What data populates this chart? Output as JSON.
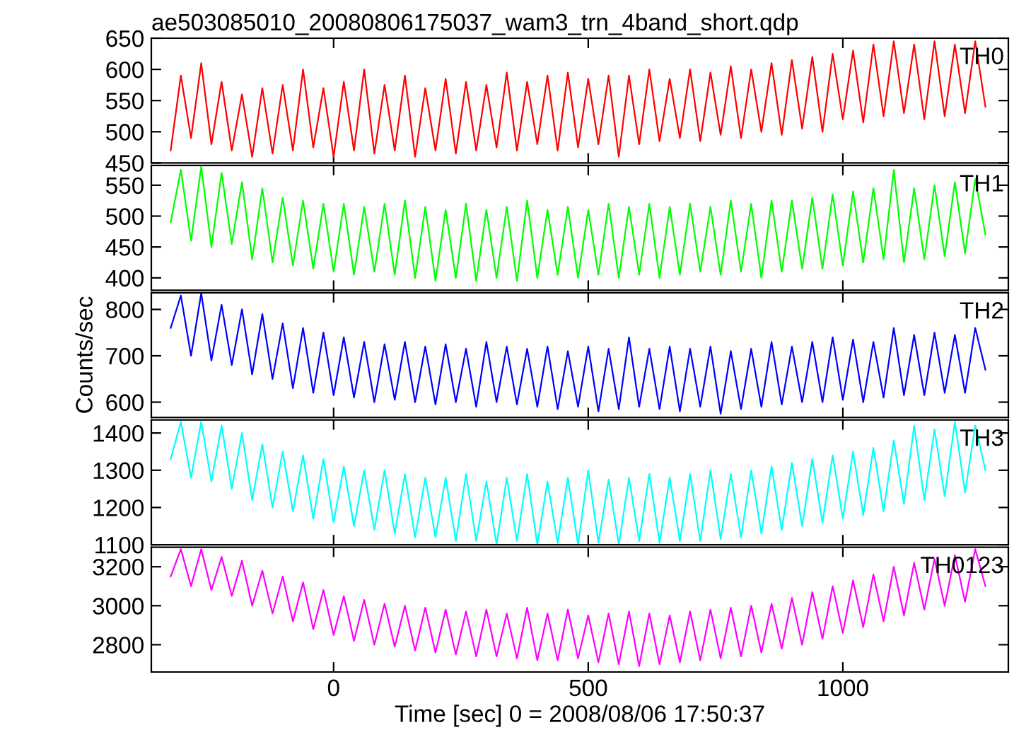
{
  "chart_data": [
    {
      "type": "line",
      "title": "ae503085010_20080806175037_wam3_trn_4band_short.qdp",
      "tick_labels": "y",
      "xlim": [
        -358,
        1325
      ],
      "xticks": [
        0,
        500,
        1000
      ],
      "ylim": [
        450,
        650
      ],
      "yticks": [
        450,
        500,
        550,
        600,
        650
      ],
      "grid": false,
      "legend": false,
      "x": [
        -320,
        -300,
        -280,
        -260,
        -240,
        -220,
        -200,
        -180,
        -160,
        -140,
        -120,
        -100,
        -80,
        -60,
        -40,
        -20,
        0,
        20,
        40,
        60,
        80,
        100,
        120,
        140,
        160,
        180,
        200,
        220,
        240,
        260,
        280,
        300,
        320,
        340,
        360,
        380,
        400,
        420,
        440,
        460,
        480,
        500,
        520,
        540,
        560,
        580,
        600,
        620,
        640,
        660,
        680,
        700,
        720,
        740,
        760,
        780,
        800,
        820,
        840,
        860,
        880,
        900,
        920,
        940,
        960,
        980,
        1000,
        1020,
        1040,
        1060,
        1080,
        1100,
        1120,
        1140,
        1160,
        1180,
        1200,
        1220,
        1240,
        1260,
        1280
      ],
      "series": [
        {
          "name": "TH0",
          "color": "#ff0000",
          "values": [
            470,
            590,
            490,
            610,
            480,
            580,
            470,
            560,
            460,
            570,
            465,
            575,
            470,
            600,
            475,
            570,
            460,
            580,
            470,
            600,
            465,
            575,
            470,
            590,
            460,
            570,
            470,
            585,
            465,
            580,
            470,
            575,
            475,
            595,
            470,
            580,
            480,
            590,
            470,
            595,
            475,
            585,
            480,
            590,
            460,
            590,
            480,
            600,
            485,
            585,
            490,
            600,
            485,
            595,
            495,
            605,
            490,
            600,
            500,
            610,
            495,
            615,
            505,
            620,
            500,
            625,
            520,
            630,
            515,
            640,
            525,
            645,
            530,
            640,
            520,
            645,
            525,
            640,
            530,
            645,
            540
          ]
        }
      ]
    },
    {
      "type": "line",
      "tick_labels": "y",
      "xlim": [
        -358,
        1325
      ],
      "xticks": [
        0,
        500,
        1000
      ],
      "ylim": [
        380,
        582
      ],
      "yticks": [
        400,
        450,
        500,
        550
      ],
      "grid": false,
      "legend": false,
      "x": [
        -320,
        -300,
        -280,
        -260,
        -240,
        -220,
        -200,
        -180,
        -160,
        -140,
        -120,
        -100,
        -80,
        -60,
        -40,
        -20,
        0,
        20,
        40,
        60,
        80,
        100,
        120,
        140,
        160,
        180,
        200,
        220,
        240,
        260,
        280,
        300,
        320,
        340,
        360,
        380,
        400,
        420,
        440,
        460,
        480,
        500,
        520,
        540,
        560,
        580,
        600,
        620,
        640,
        660,
        680,
        700,
        720,
        740,
        760,
        780,
        800,
        820,
        840,
        860,
        880,
        900,
        920,
        940,
        960,
        980,
        1000,
        1020,
        1040,
        1060,
        1080,
        1100,
        1120,
        1140,
        1160,
        1180,
        1200,
        1220,
        1240,
        1260,
        1280
      ],
      "series": [
        {
          "name": "TH1",
          "color": "#00ff00",
          "values": [
            490,
            575,
            460,
            580,
            450,
            570,
            455,
            555,
            430,
            545,
            425,
            530,
            420,
            525,
            415,
            520,
            410,
            520,
            405,
            515,
            410,
            520,
            405,
            525,
            400,
            515,
            395,
            510,
            400,
            520,
            395,
            510,
            400,
            515,
            395,
            525,
            400,
            510,
            405,
            515,
            400,
            510,
            405,
            520,
            400,
            515,
            405,
            520,
            400,
            515,
            405,
            520,
            410,
            515,
            405,
            525,
            410,
            520,
            400,
            525,
            410,
            525,
            415,
            530,
            415,
            535,
            420,
            540,
            425,
            545,
            430,
            575,
            425,
            545,
            430,
            550,
            435,
            555,
            440,
            560,
            470
          ]
        }
      ]
    },
    {
      "type": "line",
      "tick_labels": "y",
      "ylabel": "Counts/sec",
      "xlim": [
        -358,
        1325
      ],
      "xticks": [
        0,
        500,
        1000
      ],
      "ylim": [
        567,
        836
      ],
      "yticks": [
        600,
        700,
        800
      ],
      "grid": false,
      "legend": false,
      "x": [
        -320,
        -300,
        -280,
        -260,
        -240,
        -220,
        -200,
        -180,
        -160,
        -140,
        -120,
        -100,
        -80,
        -60,
        -40,
        -20,
        0,
        20,
        40,
        60,
        80,
        100,
        120,
        140,
        160,
        180,
        200,
        220,
        240,
        260,
        280,
        300,
        320,
        340,
        360,
        380,
        400,
        420,
        440,
        460,
        480,
        500,
        520,
        540,
        560,
        580,
        600,
        620,
        640,
        660,
        680,
        700,
        720,
        740,
        760,
        780,
        800,
        820,
        840,
        860,
        880,
        900,
        920,
        940,
        960,
        980,
        1000,
        1020,
        1040,
        1060,
        1080,
        1100,
        1120,
        1140,
        1160,
        1180,
        1200,
        1220,
        1240,
        1260,
        1280
      ],
      "series": [
        {
          "name": "TH2",
          "color": "#0000ff",
          "values": [
            760,
            830,
            700,
            835,
            690,
            810,
            680,
            800,
            660,
            790,
            650,
            770,
            630,
            760,
            620,
            750,
            615,
            740,
            610,
            730,
            600,
            725,
            605,
            730,
            600,
            720,
            595,
            725,
            600,
            715,
            590,
            730,
            600,
            720,
            595,
            715,
            590,
            720,
            585,
            710,
            590,
            720,
            580,
            715,
            585,
            740,
            590,
            715,
            585,
            720,
            580,
            715,
            590,
            720,
            575,
            710,
            585,
            715,
            590,
            730,
            595,
            720,
            600,
            730,
            600,
            740,
            605,
            735,
            600,
            730,
            610,
            760,
            615,
            745,
            615,
            750,
            620,
            745,
            620,
            760,
            670
          ]
        }
      ]
    },
    {
      "type": "line",
      "tick_labels": "y",
      "xlim": [
        -358,
        1325
      ],
      "xticks": [
        0,
        500,
        1000
      ],
      "ylim": [
        1100,
        1435
      ],
      "yticks": [
        1100,
        1200,
        1300,
        1400
      ],
      "grid": false,
      "legend": false,
      "x": [
        -320,
        -300,
        -280,
        -260,
        -240,
        -220,
        -200,
        -180,
        -160,
        -140,
        -120,
        -100,
        -80,
        -60,
        -40,
        -20,
        0,
        20,
        40,
        60,
        80,
        100,
        120,
        140,
        160,
        180,
        200,
        220,
        240,
        260,
        280,
        300,
        320,
        340,
        360,
        380,
        400,
        420,
        440,
        460,
        480,
        500,
        520,
        540,
        560,
        580,
        600,
        620,
        640,
        660,
        680,
        700,
        720,
        740,
        760,
        780,
        800,
        820,
        840,
        860,
        880,
        900,
        920,
        940,
        960,
        980,
        1000,
        1020,
        1040,
        1060,
        1080,
        1100,
        1120,
        1140,
        1160,
        1180,
        1200,
        1220,
        1240,
        1260,
        1280
      ],
      "series": [
        {
          "name": "TH3",
          "color": "#00ffff",
          "values": [
            1330,
            1430,
            1280,
            1430,
            1270,
            1420,
            1250,
            1400,
            1220,
            1370,
            1200,
            1350,
            1190,
            1340,
            1170,
            1330,
            1160,
            1310,
            1150,
            1300,
            1140,
            1300,
            1130,
            1290,
            1120,
            1280,
            1120,
            1280,
            1110,
            1290,
            1110,
            1270,
            1100,
            1280,
            1110,
            1290,
            1100,
            1270,
            1105,
            1280,
            1100,
            1300,
            1105,
            1275,
            1100,
            1280,
            1110,
            1290,
            1105,
            1280,
            1110,
            1290,
            1110,
            1300,
            1115,
            1290,
            1120,
            1300,
            1130,
            1310,
            1140,
            1320,
            1150,
            1330,
            1160,
            1340,
            1170,
            1350,
            1180,
            1360,
            1190,
            1380,
            1210,
            1420,
            1220,
            1410,
            1230,
            1430,
            1240,
            1420,
            1300
          ]
        }
      ]
    },
    {
      "type": "line",
      "xlabel": "Time [sec] 0 = 2008/08/06 17:50:37",
      "xlim": [
        -358,
        1325
      ],
      "xticks": [
        0,
        500,
        1000
      ],
      "ylim": [
        2660,
        3300
      ],
      "yticks": [
        2800,
        3000,
        3200
      ],
      "grid": false,
      "legend": false,
      "x": [
        -320,
        -300,
        -280,
        -260,
        -240,
        -220,
        -200,
        -180,
        -160,
        -140,
        -120,
        -100,
        -80,
        -60,
        -40,
        -20,
        0,
        20,
        40,
        60,
        80,
        100,
        120,
        140,
        160,
        180,
        200,
        220,
        240,
        260,
        280,
        300,
        320,
        340,
        360,
        380,
        400,
        420,
        440,
        460,
        480,
        500,
        520,
        540,
        560,
        580,
        600,
        620,
        640,
        660,
        680,
        700,
        720,
        740,
        760,
        780,
        800,
        820,
        840,
        860,
        880,
        900,
        920,
        940,
        960,
        980,
        1000,
        1020,
        1040,
        1060,
        1080,
        1100,
        1120,
        1140,
        1160,
        1180,
        1200,
        1220,
        1240,
        1260,
        1280
      ],
      "series": [
        {
          "name": "TH0123",
          "color": "#ff00ff",
          "values": [
            3150,
            3290,
            3100,
            3290,
            3080,
            3250,
            3050,
            3230,
            3000,
            3180,
            2960,
            3150,
            2920,
            3120,
            2880,
            3080,
            2850,
            3050,
            2820,
            3030,
            2800,
            3010,
            2790,
            3000,
            2770,
            2990,
            2760,
            2980,
            2750,
            2970,
            2740,
            2980,
            2740,
            2960,
            2730,
            2990,
            2720,
            2960,
            2720,
            2980,
            2730,
            2950,
            2710,
            2960,
            2700,
            2970,
            2690,
            2960,
            2700,
            2950,
            2710,
            2970,
            2720,
            2980,
            2730,
            2990,
            2740,
            3000,
            2760,
            3010,
            2780,
            3040,
            2800,
            3070,
            2830,
            3100,
            2860,
            3130,
            2890,
            3160,
            2920,
            3200,
            2950,
            3220,
            2980,
            3240,
            3000,
            3260,
            3020,
            3290,
            3100
          ]
        }
      ]
    }
  ]
}
